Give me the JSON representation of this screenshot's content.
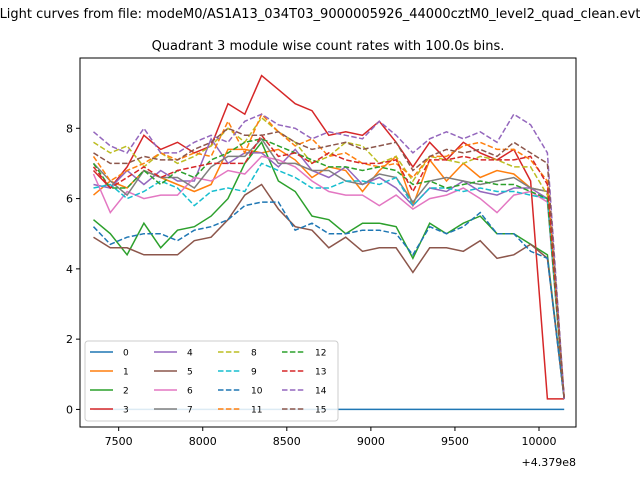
{
  "chart_data": {
    "type": "line",
    "suptitle": "Light curves from file: modeM0/AS1A13_034T03_9000005926_44000cztM0_level2_quad_clean.evt",
    "title": "Quadrant 3 module wise count rates with 100.0s bins.",
    "xlabel": "",
    "ylabel": "",
    "x_offset_label": "+4.379e8",
    "xlim": [
      437907270,
      437910220
    ],
    "ylim": [
      -0.5,
      10.0
    ],
    "x_ticks": [
      437907500,
      437908000,
      437908500,
      437909000,
      437909500,
      437910000
    ],
    "x_tick_labels": [
      "7500",
      "8000",
      "8500",
      "9000",
      "9500",
      "10000"
    ],
    "y_ticks": [
      0,
      2,
      4,
      6,
      8
    ],
    "y_tick_labels": [
      "0",
      "2",
      "4",
      "6",
      "8"
    ],
    "legend_position": "lower-left",
    "x": [
      437907350,
      437907450,
      437907550,
      437907650,
      437907750,
      437907850,
      437907950,
      437908050,
      437908150,
      437908250,
      437908350,
      437908450,
      437908550,
      437908650,
      437908750,
      437908850,
      437908950,
      437909050,
      437909150,
      437909250,
      437909350,
      437909450,
      437909550,
      437909650,
      437909750,
      437909850,
      437909950,
      437910050,
      437910150
    ],
    "series": [
      {
        "name": "0",
        "color": "#1f77b4",
        "dash": "solid",
        "values": [
          0,
          0,
          0,
          0,
          0,
          0,
          0,
          0,
          0,
          0,
          0,
          0,
          0,
          0,
          0,
          0,
          0,
          0,
          0,
          0,
          0,
          0,
          0,
          0,
          0,
          0,
          0,
          0,
          0
        ]
      },
      {
        "name": "1",
        "color": "#ff7f0e",
        "dash": "solid",
        "values": [
          6.1,
          6.5,
          6.3,
          6.8,
          6.6,
          6.4,
          6.2,
          6.4,
          7.4,
          7.4,
          7.3,
          7.4,
          7.1,
          6.6,
          6.9,
          6.8,
          6.2,
          6.8,
          7.2,
          5.8,
          7.1,
          6.5,
          7.0,
          6.6,
          6.8,
          6.7,
          6.3,
          6.2,
          0.3
        ]
      },
      {
        "name": "2",
        "color": "#2ca02c",
        "dash": "solid",
        "values": [
          5.4,
          5.0,
          4.4,
          5.3,
          4.6,
          5.1,
          5.2,
          5.5,
          6.0,
          7.0,
          7.6,
          6.5,
          6.2,
          5.5,
          5.4,
          5.0,
          5.3,
          5.3,
          5.2,
          4.3,
          5.3,
          5.0,
          5.3,
          5.5,
          5.0,
          5.0,
          4.7,
          4.4,
          0.3
        ]
      },
      {
        "name": "3",
        "color": "#d62728",
        "dash": "solid",
        "values": [
          6.8,
          6.3,
          6.9,
          7.8,
          7.4,
          7.6,
          7.3,
          7.5,
          8.7,
          8.4,
          9.5,
          9.1,
          8.7,
          8.5,
          7.8,
          7.9,
          7.8,
          8.2,
          7.6,
          6.9,
          7.6,
          7.1,
          7.6,
          7.3,
          7.1,
          7.4,
          6.5,
          0.3,
          0.3
        ]
      },
      {
        "name": "4",
        "color": "#9467bd",
        "dash": "solid",
        "values": [
          6.4,
          6.3,
          6.8,
          6.4,
          6.8,
          6.5,
          6.5,
          7.7,
          7.0,
          7.3,
          7.3,
          6.9,
          7.4,
          6.8,
          6.6,
          6.9,
          6.4,
          6.6,
          6.3,
          5.8,
          6.3,
          6.2,
          6.5,
          6.2,
          6.1,
          6.3,
          6.3,
          6.0,
          0.3
        ]
      },
      {
        "name": "5",
        "color": "#8c564b",
        "dash": "solid",
        "values": [
          4.9,
          4.6,
          4.6,
          4.4,
          4.4,
          4.4,
          4.8,
          4.9,
          5.4,
          6.1,
          6.4,
          5.7,
          5.2,
          5.1,
          4.6,
          4.9,
          4.5,
          4.6,
          4.6,
          3.9,
          4.6,
          4.6,
          4.5,
          4.8,
          4.3,
          4.4,
          4.7,
          4.3,
          0.3
        ]
      },
      {
        "name": "6",
        "color": "#e377c2",
        "dash": "solid",
        "values": [
          6.7,
          5.6,
          6.2,
          6.0,
          6.1,
          6.1,
          6.6,
          6.5,
          6.8,
          6.7,
          7.2,
          7.1,
          6.9,
          6.5,
          6.2,
          6.1,
          6.1,
          5.8,
          6.1,
          5.7,
          6.0,
          6.1,
          6.3,
          6.0,
          5.6,
          6.1,
          6.2,
          5.9,
          0.3
        ]
      },
      {
        "name": "7",
        "color": "#7f7f7f",
        "dash": "solid",
        "values": [
          7.0,
          6.5,
          6.1,
          6.8,
          6.6,
          6.6,
          6.3,
          6.9,
          7.2,
          7.2,
          7.7,
          7.0,
          7.0,
          6.8,
          6.8,
          6.5,
          6.4,
          6.7,
          6.6,
          5.9,
          6.5,
          6.6,
          6.5,
          6.4,
          6.5,
          6.6,
          6.3,
          6.2,
          0.3
        ]
      },
      {
        "name": "8",
        "color": "#bcbd22",
        "dash": "dashed",
        "values": [
          7.6,
          7.3,
          7.5,
          6.9,
          7.3,
          7.0,
          7.2,
          7.5,
          8.0,
          7.6,
          8.3,
          7.9,
          7.6,
          7.0,
          7.2,
          7.6,
          7.5,
          7.0,
          7.2,
          6.5,
          7.2,
          7.1,
          7.0,
          7.2,
          7.1,
          6.9,
          6.9,
          6.1,
          0.3
        ]
      },
      {
        "name": "9",
        "color": "#17becf",
        "dash": "dashed",
        "values": [
          6.3,
          6.4,
          6.0,
          6.2,
          6.5,
          6.3,
          5.8,
          6.2,
          6.3,
          6.2,
          7.0,
          6.8,
          6.6,
          6.3,
          6.3,
          6.5,
          6.5,
          6.4,
          6.6,
          5.8,
          6.3,
          6.3,
          6.2,
          6.3,
          6.2,
          6.2,
          6.1,
          6.0,
          0.3
        ]
      },
      {
        "name": "10",
        "color": "#1f77b4",
        "dash": "dashed",
        "values": [
          5.2,
          4.7,
          4.9,
          5.0,
          5.0,
          4.8,
          5.1,
          5.2,
          5.4,
          5.8,
          5.9,
          5.9,
          5.1,
          5.3,
          5.0,
          5.0,
          5.1,
          5.1,
          5.0,
          4.4,
          5.2,
          5.0,
          5.2,
          5.6,
          5.0,
          5.0,
          4.5,
          4.3,
          0.3
        ]
      },
      {
        "name": "11",
        "color": "#ff7f0e",
        "dash": "dashed",
        "values": [
          7.2,
          6.5,
          6.8,
          7.0,
          7.3,
          7.1,
          7.3,
          7.2,
          8.2,
          7.3,
          8.4,
          7.9,
          7.5,
          7.7,
          7.2,
          7.3,
          7.0,
          6.9,
          7.0,
          6.6,
          7.2,
          7.2,
          7.5,
          7.6,
          7.4,
          7.4,
          7.1,
          6.5,
          0.3
        ]
      },
      {
        "name": "12",
        "color": "#2ca02c",
        "dash": "dashed",
        "values": [
          7.0,
          6.3,
          6.3,
          6.8,
          6.4,
          6.8,
          6.6,
          7.1,
          7.3,
          7.6,
          7.7,
          7.5,
          7.3,
          7.1,
          6.9,
          6.9,
          6.8,
          6.9,
          6.8,
          6.4,
          6.5,
          6.3,
          6.4,
          6.5,
          6.4,
          6.4,
          6.2,
          6.0,
          0.3
        ]
      },
      {
        "name": "13",
        "color": "#d62728",
        "dash": "dashed",
        "values": [
          6.9,
          6.3,
          6.6,
          6.9,
          6.6,
          6.8,
          6.9,
          7.0,
          7.0,
          7.0,
          7.8,
          7.2,
          7.3,
          7.0,
          7.3,
          7.1,
          7.0,
          7.0,
          7.1,
          6.2,
          7.1,
          7.1,
          7.2,
          7.1,
          7.1,
          7.1,
          7.2,
          6.4,
          0.3
        ]
      },
      {
        "name": "14",
        "color": "#9467bd",
        "dash": "dashed",
        "values": [
          7.9,
          7.5,
          7.3,
          8.0,
          7.3,
          7.3,
          7.6,
          7.8,
          7.6,
          8.2,
          8.4,
          8.1,
          8.0,
          7.7,
          7.9,
          7.8,
          7.7,
          8.2,
          7.8,
          7.3,
          7.7,
          7.9,
          7.7,
          7.9,
          7.6,
          8.4,
          8.1,
          7.3,
          0.3
        ]
      },
      {
        "name": "15",
        "color": "#8c564b",
        "dash": "dashed",
        "values": [
          7.3,
          7.0,
          7.0,
          7.2,
          7.1,
          7.1,
          7.4,
          7.6,
          8.0,
          7.8,
          7.8,
          7.9,
          7.6,
          7.4,
          7.5,
          7.6,
          7.4,
          7.5,
          7.6,
          6.8,
          7.2,
          7.4,
          7.3,
          7.4,
          7.2,
          7.6,
          7.3,
          7.0,
          0.3
        ]
      }
    ]
  }
}
